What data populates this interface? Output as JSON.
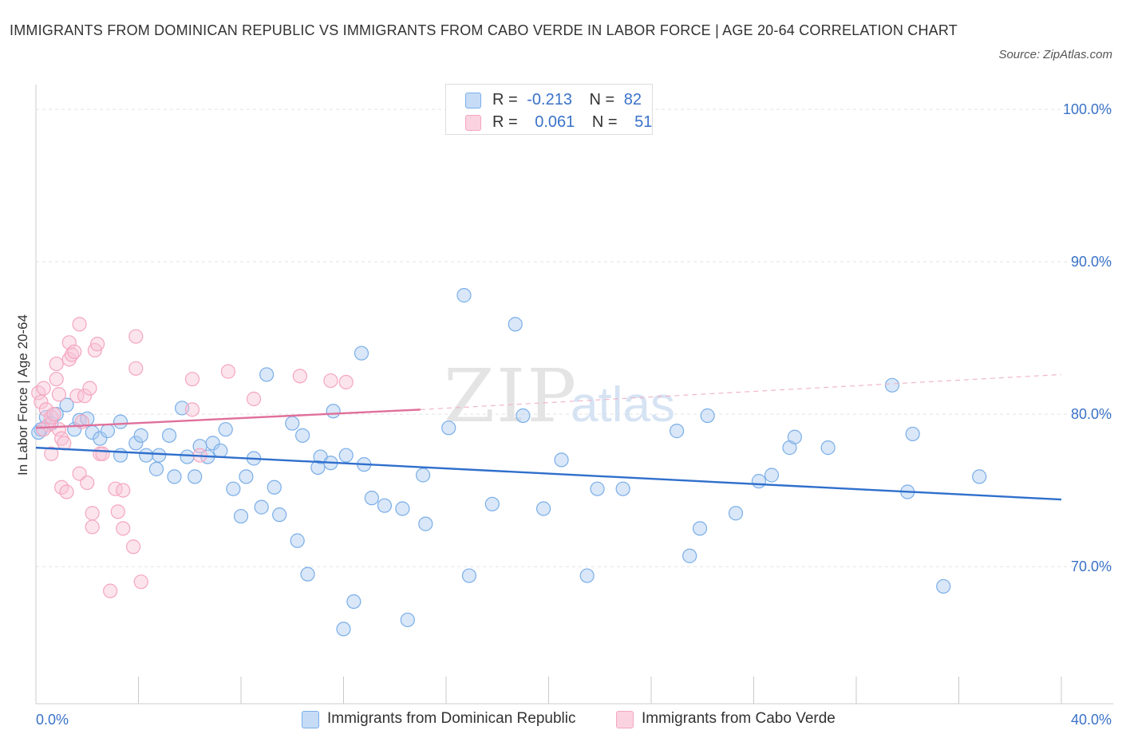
{
  "title": "IMMIGRANTS FROM DOMINICAN REPUBLIC VS IMMIGRANTS FROM CABO VERDE IN LABOR FORCE | AGE 20-64 CORRELATION CHART",
  "source": "Source: ZipAtlas.com",
  "watermark": {
    "zip": "ZIP",
    "atlas": "atlas"
  },
  "legend": [
    {
      "r_label": "R =",
      "r_value": "-0.213",
      "n_label": "N =",
      "n_value": "82",
      "color": "#7aaee8"
    },
    {
      "r_label": "R =",
      "r_value": "0.061",
      "n_label": "N =",
      "n_value": "51",
      "color": "#f4a6bf"
    }
  ],
  "chart_data": {
    "type": "scatter",
    "title": "IMMIGRANTS FROM DOMINICAN REPUBLIC VS IMMIGRANTS FROM CABO VERDE IN LABOR FORCE | AGE 20-64 CORRELATION CHART",
    "xlabel": "",
    "ylabel": "In Labor Force | Age 20-64",
    "xlim": [
      0,
      40
    ],
    "ylim": [
      61.0,
      101.0
    ],
    "y_ticks": [
      {
        "value": 100,
        "label": "100.0%"
      },
      {
        "value": 90,
        "label": "90.0%"
      },
      {
        "value": 80,
        "label": "80.0%"
      },
      {
        "value": 70,
        "label": "70.0%"
      }
    ],
    "x_ticks": [
      {
        "value": 0,
        "label": "0.0%"
      },
      {
        "value": 40,
        "label": "40.0%"
      }
    ],
    "grid": true,
    "legend_position": "top-center",
    "series": [
      {
        "name": "Immigrants from Dominican Republic",
        "color": "#7aaee8",
        "trend": {
          "x": [
            0,
            40
          ],
          "y": [
            77.8,
            74.4
          ],
          "style": "solid",
          "color": "#2f6fcc"
        },
        "points": [
          [
            0.2,
            79.0
          ],
          [
            0.4,
            79.8
          ],
          [
            0.6,
            79.4
          ],
          [
            0.8,
            80.0
          ],
          [
            1.2,
            80.6
          ],
          [
            1.5,
            79.0
          ],
          [
            1.7,
            79.6
          ],
          [
            2.0,
            79.7
          ],
          [
            2.2,
            78.8
          ],
          [
            2.5,
            78.4
          ],
          [
            2.8,
            78.9
          ],
          [
            3.3,
            79.5
          ],
          [
            3.3,
            77.3
          ],
          [
            3.9,
            78.1
          ],
          [
            4.1,
            78.6
          ],
          [
            4.3,
            77.3
          ],
          [
            4.7,
            76.4
          ],
          [
            4.8,
            77.3
          ],
          [
            5.2,
            78.6
          ],
          [
            5.4,
            75.9
          ],
          [
            5.7,
            80.4
          ],
          [
            5.9,
            77.2
          ],
          [
            6.2,
            75.9
          ],
          [
            6.4,
            77.9
          ],
          [
            6.7,
            77.2
          ],
          [
            6.9,
            78.1
          ],
          [
            7.2,
            77.6
          ],
          [
            7.4,
            79.0
          ],
          [
            7.7,
            75.1
          ],
          [
            8.0,
            73.3
          ],
          [
            8.2,
            75.9
          ],
          [
            8.5,
            77.1
          ],
          [
            8.8,
            73.9
          ],
          [
            9.0,
            82.6
          ],
          [
            9.3,
            75.2
          ],
          [
            9.5,
            73.4
          ],
          [
            10.0,
            79.4
          ],
          [
            10.2,
            71.7
          ],
          [
            10.4,
            78.6
          ],
          [
            10.6,
            69.5
          ],
          [
            11.0,
            76.5
          ],
          [
            11.1,
            77.2
          ],
          [
            11.5,
            76.8
          ],
          [
            11.6,
            80.2
          ],
          [
            12.0,
            65.9
          ],
          [
            12.1,
            77.3
          ],
          [
            12.4,
            67.7
          ],
          [
            12.7,
            84.0
          ],
          [
            12.8,
            76.7
          ],
          [
            13.1,
            74.5
          ],
          [
            13.6,
            74.0
          ],
          [
            14.3,
            73.8
          ],
          [
            14.5,
            66.5
          ],
          [
            15.1,
            76.0
          ],
          [
            15.2,
            72.8
          ],
          [
            16.1,
            79.1
          ],
          [
            16.7,
            87.8
          ],
          [
            16.9,
            69.4
          ],
          [
            17.8,
            74.1
          ],
          [
            18.7,
            85.9
          ],
          [
            19.0,
            79.9
          ],
          [
            19.8,
            73.8
          ],
          [
            20.5,
            77.0
          ],
          [
            21.5,
            69.4
          ],
          [
            21.9,
            75.1
          ],
          [
            22.9,
            75.1
          ],
          [
            25.0,
            78.9
          ],
          [
            25.5,
            70.7
          ],
          [
            25.9,
            72.5
          ],
          [
            26.2,
            79.9
          ],
          [
            27.3,
            73.5
          ],
          [
            28.2,
            75.6
          ],
          [
            28.7,
            76.0
          ],
          [
            29.4,
            77.8
          ],
          [
            29.6,
            78.5
          ],
          [
            30.9,
            77.8
          ],
          [
            33.4,
            81.9
          ],
          [
            34.0,
            74.9
          ],
          [
            34.2,
            78.7
          ],
          [
            35.4,
            68.7
          ],
          [
            36.8,
            75.9
          ],
          [
            0.1,
            78.8
          ]
        ]
      },
      {
        "name": "Immigrants from Cabo Verde",
        "color": "#f4a6bf",
        "trend": {
          "x": [
            0,
            15
          ],
          "y": [
            79.1,
            80.3
          ],
          "style": "solid",
          "color": "#e0709a",
          "extension": {
            "x": [
              15,
              40
            ],
            "y": [
              80.3,
              82.6
            ],
            "style": "dashed"
          }
        },
        "points": [
          [
            0.1,
            81.4
          ],
          [
            0.2,
            80.8
          ],
          [
            0.3,
            81.7
          ],
          [
            0.4,
            80.3
          ],
          [
            0.5,
            79.3
          ],
          [
            0.6,
            79.8
          ],
          [
            0.6,
            77.4
          ],
          [
            0.7,
            80.0
          ],
          [
            0.8,
            83.3
          ],
          [
            0.8,
            82.3
          ],
          [
            0.9,
            81.3
          ],
          [
            0.9,
            79.0
          ],
          [
            1.0,
            78.4
          ],
          [
            1.0,
            75.2
          ],
          [
            1.1,
            78.1
          ],
          [
            1.2,
            74.9
          ],
          [
            1.3,
            83.6
          ],
          [
            1.3,
            84.7
          ],
          [
            1.4,
            83.9
          ],
          [
            1.5,
            84.1
          ],
          [
            1.6,
            81.2
          ],
          [
            1.7,
            85.9
          ],
          [
            1.7,
            76.1
          ],
          [
            1.9,
            81.2
          ],
          [
            2.0,
            75.5
          ],
          [
            2.1,
            81.7
          ],
          [
            2.2,
            72.6
          ],
          [
            2.2,
            73.5
          ],
          [
            2.3,
            84.2
          ],
          [
            2.4,
            84.6
          ],
          [
            2.5,
            77.4
          ],
          [
            2.6,
            77.4
          ],
          [
            2.9,
            68.4
          ],
          [
            3.1,
            75.1
          ],
          [
            3.2,
            73.6
          ],
          [
            3.4,
            72.5
          ],
          [
            3.4,
            75.0
          ],
          [
            3.8,
            71.3
          ],
          [
            3.9,
            85.1
          ],
          [
            3.9,
            83.0
          ],
          [
            4.1,
            69.0
          ],
          [
            6.1,
            82.3
          ],
          [
            6.1,
            80.3
          ],
          [
            6.4,
            77.3
          ],
          [
            7.5,
            82.8
          ],
          [
            8.5,
            81.0
          ],
          [
            10.3,
            82.5
          ],
          [
            11.5,
            82.2
          ],
          [
            12.1,
            82.1
          ],
          [
            0.3,
            79.0
          ],
          [
            1.8,
            79.5
          ]
        ]
      }
    ]
  },
  "bottom_legend": [
    {
      "label": "Immigrants from Dominican Republic",
      "color": "#7aaee8"
    },
    {
      "label": "Immigrants from Cabo Verde",
      "color": "#f4a6bf"
    }
  ]
}
